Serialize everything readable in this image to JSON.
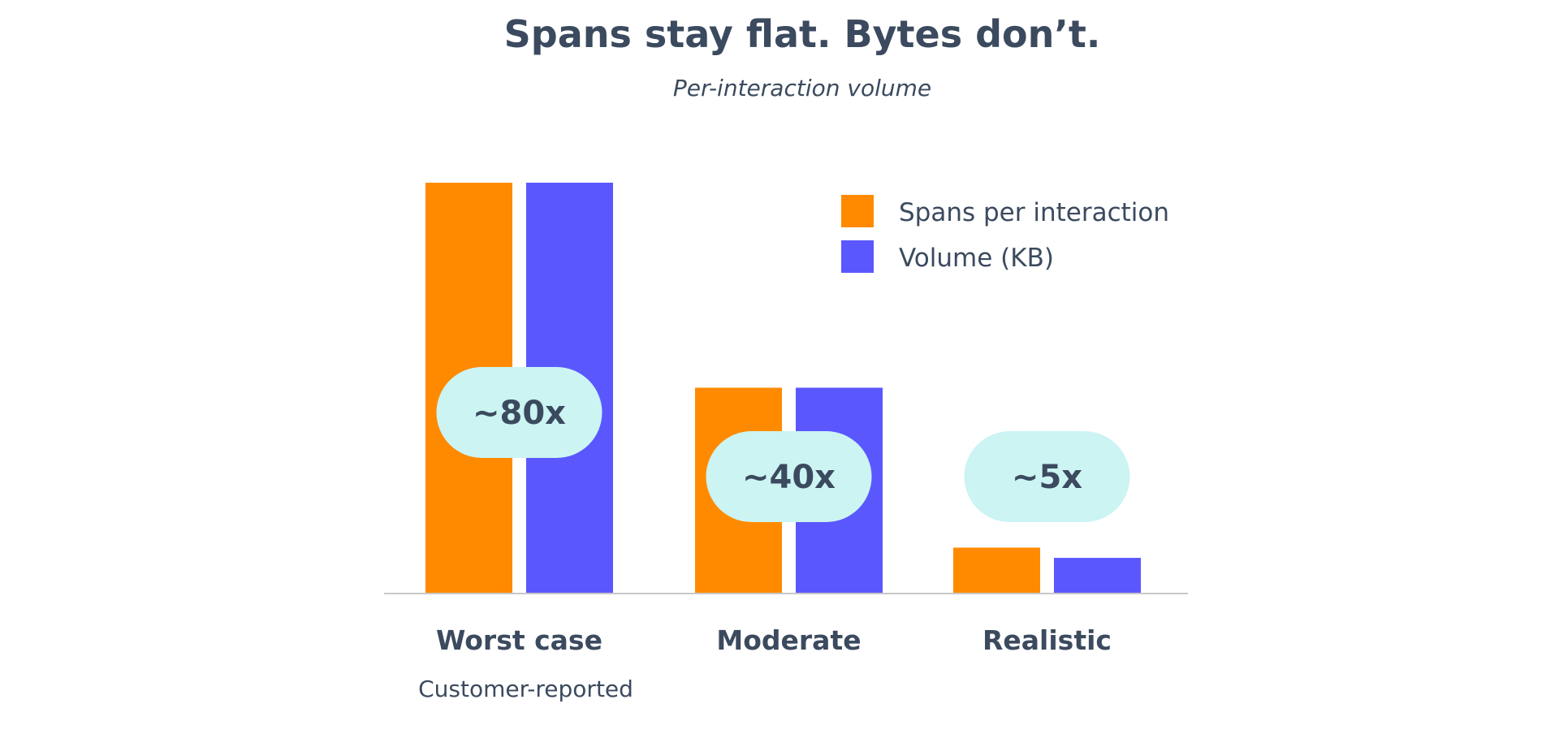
{
  "chart_data": {
    "type": "bar",
    "title": "Spans stay flat. Bytes don’t.",
    "subtitle": "Per-interaction volume",
    "categories": [
      "Worst case",
      "Moderate",
      "Realistic"
    ],
    "category_sublabels": [
      "Customer-reported",
      "",
      ""
    ],
    "series": [
      {
        "name": "Spans per interaction",
        "color": "#ff8a00",
        "values": [
          100,
          50,
          11
        ]
      },
      {
        "name": "Volume (KB)",
        "color": "#5b57ff",
        "values": [
          100,
          50,
          8.5
        ]
      }
    ],
    "annotations": [
      "~80x",
      "~40x",
      "~5x"
    ],
    "annotation_color": "#cbf4f3",
    "ylim": [
      0,
      100
    ],
    "legend_position": "top-right",
    "grid": false
  }
}
